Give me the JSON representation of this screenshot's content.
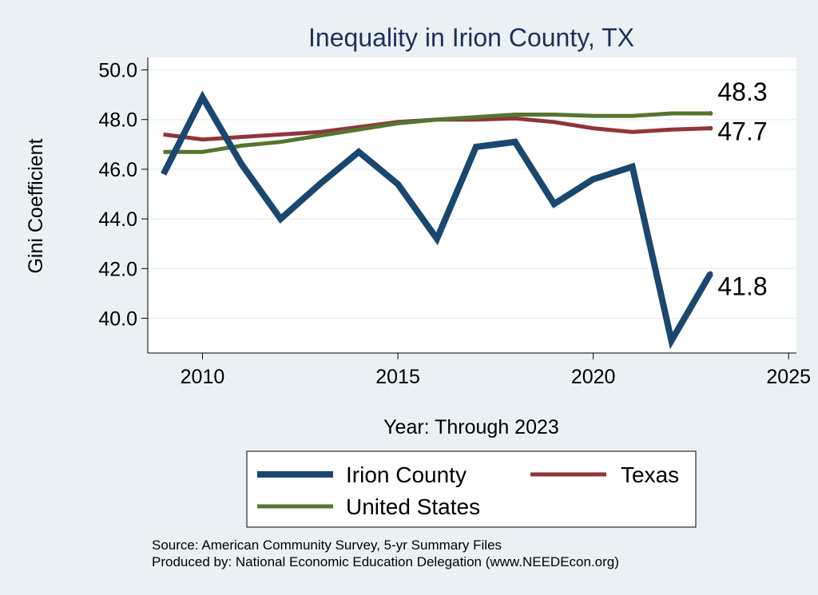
{
  "chart_data": {
    "type": "line",
    "title": "Inequality in Irion County, TX",
    "xlabel": "Year: Through 2023",
    "ylabel": "Gini Coefficient",
    "xlim": [
      2008.6,
      2025.2
    ],
    "ylim": [
      38.6,
      50.5
    ],
    "xticks": [
      2010,
      2015,
      2020,
      2025
    ],
    "yticks": [
      40.0,
      42.0,
      44.0,
      46.0,
      48.0,
      50.0
    ],
    "x": [
      2009,
      2010,
      2011,
      2012,
      2013,
      2014,
      2015,
      2016,
      2017,
      2018,
      2019,
      2020,
      2021,
      2022,
      2023
    ],
    "series": [
      {
        "name": "Irion County",
        "color": "#1a476f",
        "values": [
          45.8,
          48.9,
          46.2,
          44.0,
          45.4,
          46.7,
          45.4,
          43.2,
          46.9,
          47.1,
          44.6,
          45.6,
          46.1,
          39.1,
          41.8
        ],
        "end_label": "41.8"
      },
      {
        "name": "Texas",
        "color": "#90353b",
        "values": [
          47.4,
          47.2,
          47.3,
          47.4,
          47.5,
          47.7,
          47.9,
          48.0,
          48.0,
          48.05,
          47.9,
          47.65,
          47.5,
          47.6,
          47.65
        ],
        "end_label": "47.7"
      },
      {
        "name": "United States",
        "color": "#55752f",
        "values": [
          46.7,
          46.7,
          46.95,
          47.1,
          47.35,
          47.6,
          47.85,
          48.0,
          48.1,
          48.2,
          48.2,
          48.15,
          48.15,
          48.25,
          48.25
        ],
        "end_label": "48.3"
      }
    ],
    "legend": {
      "placement": "bottom",
      "order": [
        "Irion County",
        "Texas",
        "United States"
      ]
    },
    "source": "Source: American Community Survey, 5-yr Summary Files",
    "produced_by": "Produced by: National Economic Education Delegation (www.NEEDEcon.org)"
  }
}
